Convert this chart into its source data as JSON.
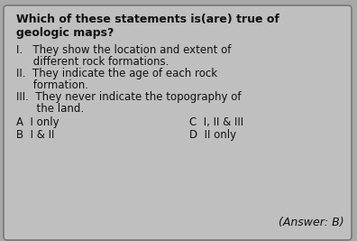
{
  "bg_color": "#a8a8a8",
  "card_color": "#c0bfbf",
  "text_color": "#111111",
  "title_line1": "Which of these statements is(are) true of",
  "title_line2": "geologic maps?",
  "item_I_line1": "I.   They show the location and extent of",
  "item_I_line2": "     different rock formations.",
  "item_II_line1": "II.  They indicate the age of each rock",
  "item_II_line2": "     formation.",
  "item_III_line1": "III.  They never indicate the topography of",
  "item_III_line2": "      the land.",
  "opt_A": "A  I only",
  "opt_B": "B  I & II",
  "opt_C": "C  I, II & III",
  "opt_D": "D  II only",
  "answer": "(Answer: B)",
  "title_fontsize": 9.0,
  "body_fontsize": 8.5,
  "answer_fontsize": 9.0
}
